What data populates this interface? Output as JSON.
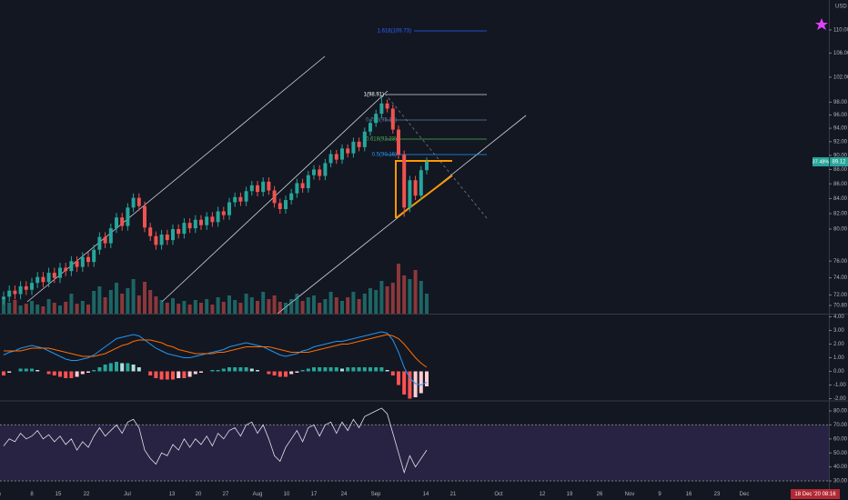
{
  "chart_data": [
    {
      "type": "candlestick",
      "log_scale": true,
      "up_color": "#26a69a",
      "down_color": "#ef5350",
      "ylim": [
        69.88,
        115.4
      ],
      "yticks": [
        {
          "value": 110,
          "label": "110.00"
        },
        {
          "value": 106,
          "label": "106.00"
        },
        {
          "value": 102,
          "label": "102.00"
        },
        {
          "value": 98,
          "label": "98.00"
        },
        {
          "value": 96,
          "label": "96.00"
        },
        {
          "value": 94,
          "label": "94.00"
        },
        {
          "value": 92,
          "label": "92.00"
        },
        {
          "value": 90,
          "label": "90.00"
        },
        {
          "value": 88,
          "label": "88.00"
        },
        {
          "value": 86,
          "label": "86.00"
        },
        {
          "value": 84,
          "label": "84.00"
        },
        {
          "value": 82,
          "label": "82.00"
        },
        {
          "value": 80,
          "label": "80.00"
        },
        {
          "value": 76,
          "label": "76.00"
        },
        {
          "value": 74,
          "label": "74.00"
        },
        {
          "value": 72,
          "label": "72.00"
        },
        {
          "value": 70.8,
          "label": "70.80"
        }
      ],
      "open": [
        71.5,
        71.8,
        72.5,
        72.1,
        73.0,
        72.6,
        73.4,
        74.1,
        73.5,
        74.6,
        74.0,
        75.2,
        74.8,
        76.0,
        75.3,
        76.5,
        75.9,
        77.4,
        79.0,
        78.2,
        80.1,
        81.5,
        80.4,
        82.8,
        84.1,
        83.0,
        80.2,
        79.1,
        78.0,
        79.3,
        78.6,
        80.0,
        79.4,
        80.8,
        80.1,
        81.2,
        80.5,
        81.6,
        80.9,
        82.3,
        81.8,
        83.5,
        84.2,
        83.6,
        85.0,
        85.8,
        84.9,
        86.3,
        85.1,
        83.4,
        82.6,
        83.8,
        84.7,
        86.1,
        85.4,
        87.2,
        88.0,
        87.1,
        88.9,
        90.2,
        89.4,
        91.0,
        90.3,
        92.0,
        91.2,
        93.5,
        94.8,
        96.2,
        97.8,
        97.0,
        93.8,
        90.1,
        82.8,
        86.5,
        84.4,
        87.9
      ],
      "high": [
        72.4,
        73.1,
        73.1,
        73.6,
        73.6,
        74.0,
        74.7,
        74.7,
        75.2,
        75.2,
        75.8,
        75.8,
        76.6,
        76.6,
        77.1,
        77.1,
        78.0,
        79.6,
        79.6,
        80.7,
        82.1,
        82.1,
        83.4,
        84.7,
        84.7,
        83.6,
        80.8,
        79.7,
        79.9,
        79.9,
        80.6,
        80.6,
        81.4,
        81.4,
        81.8,
        81.8,
        82.2,
        82.2,
        82.9,
        82.9,
        84.1,
        84.8,
        84.8,
        85.6,
        86.4,
        86.4,
        86.9,
        86.9,
        85.7,
        84.0,
        84.4,
        85.3,
        86.7,
        86.7,
        87.8,
        88.6,
        88.6,
        89.5,
        90.8,
        90.8,
        91.6,
        91.6,
        92.6,
        92.6,
        94.1,
        95.4,
        96.8,
        98.9,
        98.4,
        97.6,
        94.4,
        90.7,
        87.1,
        87.1,
        88.5,
        89.7
      ],
      "low": [
        70.9,
        71.2,
        71.5,
        71.5,
        72.0,
        72.0,
        72.8,
        72.9,
        72.9,
        73.4,
        73.4,
        74.2,
        74.2,
        74.7,
        74.7,
        75.3,
        75.3,
        76.8,
        77.6,
        77.6,
        79.5,
        79.8,
        79.8,
        82.2,
        82.4,
        79.6,
        78.5,
        77.4,
        77.4,
        78.0,
        78.0,
        78.8,
        78.8,
        79.5,
        79.5,
        79.9,
        79.9,
        80.3,
        80.3,
        81.2,
        81.2,
        82.9,
        83.0,
        83.0,
        84.4,
        84.3,
        84.3,
        84.5,
        82.8,
        82.0,
        82.0,
        83.2,
        84.1,
        84.8,
        84.8,
        86.6,
        86.5,
        86.5,
        88.3,
        88.8,
        88.8,
        89.7,
        89.7,
        90.6,
        90.6,
        92.9,
        94.2,
        95.6,
        96.4,
        93.2,
        89.5,
        81.6,
        82.2,
        83.8,
        83.8,
        87.3
      ],
      "close": [
        71.8,
        72.5,
        72.1,
        73.0,
        72.6,
        73.4,
        74.1,
        73.5,
        74.6,
        74.0,
        75.2,
        74.8,
        76.0,
        75.3,
        76.5,
        75.9,
        77.4,
        79.0,
        78.2,
        80.1,
        81.5,
        80.4,
        82.8,
        84.1,
        83.0,
        80.2,
        79.1,
        78.0,
        79.3,
        78.6,
        80.0,
        79.4,
        80.8,
        80.1,
        81.2,
        80.5,
        81.6,
        80.9,
        82.3,
        81.8,
        83.5,
        84.2,
        83.6,
        85.0,
        85.8,
        84.9,
        86.3,
        85.1,
        83.4,
        82.6,
        83.8,
        84.7,
        86.1,
        85.4,
        87.2,
        88.0,
        87.1,
        88.9,
        90.2,
        89.4,
        91.0,
        90.3,
        92.0,
        91.2,
        93.5,
        94.8,
        96.2,
        97.8,
        97.0,
        93.8,
        90.1,
        82.8,
        86.5,
        84.4,
        87.9,
        89.1
      ],
      "currency": "USD",
      "price_label": "89.12",
      "change_label": "37.48%",
      "fib_labels": [
        "1.618(109.73)",
        "1(98.91)",
        "0.786(95.17)",
        "0.618(92.23)",
        "0.5(90.16)"
      ]
    },
    {
      "type": "volume",
      "ylim": [
        0,
        345
      ],
      "values": [
        18,
        12,
        15,
        9,
        11,
        14,
        10,
        8,
        16,
        12,
        9,
        13,
        22,
        11,
        14,
        10,
        25,
        30,
        18,
        26,
        34,
        22,
        28,
        38,
        20,
        35,
        26,
        19,
        15,
        12,
        17,
        11,
        14,
        10,
        15,
        12,
        16,
        10,
        18,
        13,
        20,
        15,
        12,
        22,
        18,
        14,
        24,
        16,
        20,
        13,
        12,
        16,
        22,
        14,
        18,
        20,
        12,
        16,
        24,
        18,
        14,
        18,
        24,
        16,
        22,
        28,
        26,
        36,
        30,
        34,
        55,
        42,
        38,
        48,
        36,
        22
      ]
    },
    {
      "type": "macd",
      "ylim": [
        -2.1,
        4.1
      ],
      "macd_color": "#2196f3",
      "signal_color": "#ff6d00",
      "yticks": [
        {
          "value": 4,
          "label": "4.00"
        },
        {
          "value": 3,
          "label": "3.00"
        },
        {
          "value": 2,
          "label": "2.00"
        },
        {
          "value": 1,
          "label": "1.00"
        },
        {
          "value": 0,
          "label": "0.00"
        },
        {
          "value": -1,
          "label": "-1.00"
        },
        {
          "value": -2,
          "label": "-2.00"
        }
      ],
      "macd": [
        1.2,
        1.4,
        1.5,
        1.7,
        1.8,
        1.9,
        1.8,
        1.7,
        1.5,
        1.3,
        1.1,
        0.9,
        0.8,
        0.8,
        0.9,
        1.0,
        1.2,
        1.5,
        1.8,
        2.1,
        2.4,
        2.5,
        2.6,
        2.7,
        2.6,
        2.3,
        2.0,
        1.7,
        1.5,
        1.3,
        1.2,
        1.1,
        1.0,
        1.0,
        1.1,
        1.2,
        1.3,
        1.4,
        1.5,
        1.6,
        1.8,
        1.9,
        2.0,
        2.1,
        2.0,
        1.9,
        1.8,
        1.6,
        1.4,
        1.2,
        1.1,
        1.2,
        1.3,
        1.5,
        1.6,
        1.8,
        1.9,
        2.0,
        2.1,
        2.2,
        2.2,
        2.3,
        2.4,
        2.5,
        2.6,
        2.7,
        2.8,
        2.9,
        2.8,
        2.3,
        1.4,
        0.3,
        -0.5,
        -0.9,
        -1.0,
        -0.8
      ],
      "signal": [
        1.5,
        1.5,
        1.5,
        1.5,
        1.6,
        1.7,
        1.7,
        1.7,
        1.7,
        1.6,
        1.5,
        1.4,
        1.3,
        1.2,
        1.1,
        1.1,
        1.1,
        1.2,
        1.3,
        1.5,
        1.7,
        1.9,
        2.0,
        2.2,
        2.3,
        2.3,
        2.3,
        2.2,
        2.1,
        1.9,
        1.8,
        1.6,
        1.5,
        1.4,
        1.3,
        1.3,
        1.3,
        1.3,
        1.4,
        1.4,
        1.5,
        1.6,
        1.7,
        1.8,
        1.8,
        1.8,
        1.8,
        1.8,
        1.7,
        1.6,
        1.5,
        1.4,
        1.4,
        1.4,
        1.4,
        1.5,
        1.6,
        1.7,
        1.8,
        1.9,
        2.0,
        2.0,
        2.1,
        2.2,
        2.3,
        2.4,
        2.5,
        2.6,
        2.7,
        2.6,
        2.4,
        2.0,
        1.5,
        1.0,
        0.6,
        0.3
      ],
      "histogram": [
        -0.3,
        -0.1,
        0.0,
        0.2,
        0.2,
        0.2,
        0.1,
        0.0,
        -0.2,
        -0.3,
        -0.4,
        -0.5,
        -0.5,
        -0.4,
        -0.2,
        -0.1,
        0.1,
        0.3,
        0.5,
        0.6,
        0.7,
        0.6,
        0.6,
        0.5,
        0.3,
        0.0,
        -0.3,
        -0.5,
        -0.6,
        -0.6,
        -0.6,
        -0.5,
        -0.5,
        -0.4,
        -0.2,
        -0.1,
        0.0,
        0.1,
        0.1,
        0.2,
        0.3,
        0.3,
        0.3,
        0.3,
        0.2,
        0.1,
        0.0,
        -0.2,
        -0.3,
        -0.4,
        -0.4,
        -0.2,
        -0.1,
        0.1,
        0.2,
        0.3,
        0.3,
        0.3,
        0.3,
        0.3,
        0.2,
        0.3,
        0.3,
        0.3,
        0.3,
        0.3,
        0.3,
        0.3,
        0.1,
        -0.3,
        -1.0,
        -1.7,
        -2.0,
        -1.9,
        -1.6,
        -1.1
      ]
    },
    {
      "type": "line",
      "ylim": [
        26.1,
        86.5
      ],
      "color": "#e0e3eb",
      "band": [
        30,
        70
      ],
      "band_color": "#7e57c2",
      "yticks": [
        {
          "value": 80,
          "label": "80.00"
        },
        {
          "value": 70,
          "label": "70.00"
        },
        {
          "value": 60,
          "label": "60.00"
        },
        {
          "value": 50,
          "label": "50.00"
        },
        {
          "value": 40,
          "label": "40.00"
        },
        {
          "value": 30,
          "label": "30.00"
        }
      ],
      "values": [
        55,
        60,
        58,
        64,
        60,
        62,
        66,
        60,
        63,
        58,
        62,
        56,
        60,
        52,
        58,
        54,
        62,
        68,
        62,
        66,
        70,
        64,
        72,
        74,
        68,
        52,
        46,
        42,
        50,
        48,
        56,
        52,
        60,
        54,
        60,
        56,
        62,
        55,
        64,
        60,
        66,
        68,
        62,
        70,
        72,
        64,
        70,
        60,
        48,
        44,
        54,
        60,
        66,
        58,
        68,
        70,
        62,
        70,
        72,
        64,
        72,
        66,
        74,
        68,
        76,
        78,
        80,
        82,
        78,
        64,
        50,
        36,
        48,
        40,
        46,
        52
      ],
      "x_labels": [
        "Jun",
        "8",
        "15",
        "22",
        "Jul",
        "13",
        "20",
        "27",
        "Aug",
        "10",
        "17",
        "24",
        "Sep",
        "14",
        "21",
        "Oct",
        "12",
        "19",
        "26",
        "Nov",
        "9",
        "16",
        "23",
        "Dec"
      ],
      "cursor_time": "18 Dec '20  08:16"
    }
  ]
}
